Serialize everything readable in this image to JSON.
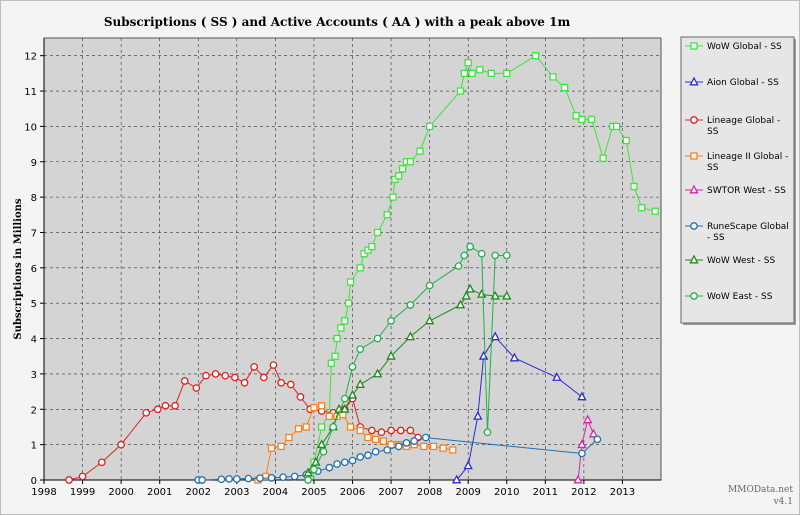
{
  "chart_data": {
    "type": "line",
    "title": "Subscriptions ( SS ) and Active Accounts ( AA ) with a peak above 1m",
    "ylabel": "Subscriptions in Millions",
    "xlabel": "",
    "xlim": [
      1998,
      2014
    ],
    "ylim": [
      0,
      12.5
    ],
    "x_ticks": [
      "1998",
      "1999",
      "2000",
      "2001",
      "2002",
      "2003",
      "2004",
      "2005",
      "2006",
      "2007",
      "2008",
      "2009",
      "2010",
      "2011",
      "2012",
      "2013"
    ],
    "y_ticks": [
      "0",
      "1",
      "2",
      "3",
      "4",
      "5",
      "6",
      "7",
      "8",
      "9",
      "10",
      "11",
      "12"
    ],
    "grid": true,
    "legend_position": "right",
    "credit": [
      "MMOData.net",
      "v4.1"
    ],
    "series": [
      {
        "name": "WoW Global - SS",
        "color": "#3ee43e",
        "marker": "square",
        "x": [
          2004.9,
          2005.0,
          2005.2,
          2005.4,
          2005.45,
          2005.55,
          2005.6,
          2005.7,
          2005.8,
          2005.9,
          2005.95,
          2006.2,
          2006.3,
          2006.4,
          2006.5,
          2006.65,
          2006.9,
          2007.05,
          2007.1,
          2007.2,
          2007.3,
          2007.4,
          2007.5,
          2007.75,
          2008.0,
          2008.8,
          2008.9,
          2009.0,
          2009.1,
          2009.3,
          2009.6,
          2010.0,
          2010.75,
          2011.2,
          2011.5,
          2011.8,
          2011.95,
          2012.2,
          2012.5,
          2012.75,
          2012.85,
          2013.1,
          2013.3,
          2013.5,
          2013.85
        ],
        "y": [
          0.2,
          0.5,
          1.5,
          1.9,
          3.3,
          3.5,
          4.0,
          4.3,
          4.5,
          5.0,
          5.6,
          6.0,
          6.4,
          6.5,
          6.6,
          7.0,
          7.5,
          8.0,
          8.5,
          8.6,
          8.8,
          9.0,
          9.0,
          9.3,
          10.0,
          11.0,
          11.5,
          11.8,
          11.5,
          11.6,
          11.5,
          11.5,
          12.0,
          11.4,
          11.1,
          10.3,
          10.2,
          10.2,
          9.1,
          10.0,
          10.0,
          9.6,
          8.3,
          7.7,
          7.6
        ]
      },
      {
        "name": "Aion Global - SS",
        "color": "#2b2bd6",
        "marker": "triangle",
        "x": [
          2008.7,
          2009.0,
          2009.25,
          2009.4,
          2009.7,
          2010.2,
          2011.3,
          2011.95
        ],
        "y": [
          0,
          0.4,
          1.8,
          3.5,
          4.05,
          3.45,
          2.9,
          2.35
        ]
      },
      {
        "name": "Lineage Global - SS",
        "color": "#e02020",
        "marker": "circle",
        "x": [
          1998.65,
          1999.0,
          1999.5,
          2000.0,
          2000.65,
          2000.95,
          2001.15,
          2001.4,
          2001.65,
          2001.95,
          2002.2,
          2002.45,
          2002.7,
          2002.95,
          2003.2,
          2003.45,
          2003.7,
          2003.95,
          2004.15,
          2004.4,
          2004.65,
          2004.9,
          2005.2,
          2005.5,
          2005.8,
          2006.0,
          2006.2,
          2006.5,
          2006.75,
          2007.0,
          2007.25,
          2007.5,
          2007.7
        ],
        "y": [
          0,
          0.1,
          0.5,
          1.0,
          1.9,
          2.0,
          2.1,
          2.1,
          2.8,
          2.6,
          2.95,
          3.0,
          2.95,
          2.9,
          2.75,
          3.2,
          2.9,
          3.25,
          2.75,
          2.7,
          2.35,
          2.0,
          1.95,
          1.9,
          2.0,
          2.3,
          1.5,
          1.4,
          1.35,
          1.4,
          1.4,
          1.4,
          1.2
        ]
      },
      {
        "name": "Lineage II Global - SS",
        "color": "#ff7f1a",
        "marker": "square",
        "x": [
          2003.55,
          2003.75,
          2003.9,
          2004.15,
          2004.35,
          2004.6,
          2004.8,
          2005.0,
          2005.2,
          2005.4,
          2005.6,
          2005.75,
          2005.95,
          2006.2,
          2006.4,
          2006.6,
          2006.8,
          2007.0,
          2007.2,
          2007.4,
          2007.6,
          2007.85,
          2008.1,
          2008.35,
          2008.6
        ],
        "y": [
          0,
          0.1,
          0.9,
          0.95,
          1.2,
          1.45,
          1.5,
          2.05,
          2.1,
          1.8,
          1.8,
          1.85,
          1.5,
          1.4,
          1.2,
          1.15,
          1.1,
          1.0,
          1.0,
          0.95,
          1.0,
          0.95,
          0.95,
          0.9,
          0.85
        ]
      },
      {
        "name": "SWTOR West - SS",
        "color": "#d626a8",
        "marker": "triangle",
        "x": [
          2011.85,
          2011.95,
          2012.1,
          2012.25
        ],
        "y": [
          0,
          1.0,
          1.7,
          1.3
        ]
      },
      {
        "name": "RuneScape Global - SS",
        "color": "#1f6fb4",
        "marker": "circle",
        "x": [
          2002.0,
          2002.1,
          2002.6,
          2002.8,
          2003.0,
          2003.3,
          2003.6,
          2003.9,
          2004.2,
          2004.5,
          2004.8,
          2005.1,
          2005.4,
          2005.6,
          2005.8,
          2006.0,
          2006.2,
          2006.4,
          2006.6,
          2006.9,
          2007.2,
          2007.4,
          2007.6,
          2007.9,
          2011.95,
          2012.35
        ],
        "y": [
          0,
          0,
          0.02,
          0.03,
          0.03,
          0.04,
          0.05,
          0.06,
          0.08,
          0.1,
          0.15,
          0.25,
          0.35,
          0.45,
          0.5,
          0.55,
          0.65,
          0.7,
          0.8,
          0.85,
          0.95,
          1.05,
          1.1,
          1.2,
          0.75,
          1.15
        ]
      },
      {
        "name": "WoW West - SS",
        "color": "#1a8a1a",
        "marker": "triangle",
        "x": [
          2004.85,
          2004.95,
          2005.05,
          2005.2,
          2005.5,
          2005.65,
          2005.8,
          2006.0,
          2006.2,
          2006.65,
          2007.0,
          2007.5,
          2008.0,
          2008.8,
          2008.95,
          2009.05,
          2009.35,
          2009.7,
          2010.0
        ],
        "y": [
          0.2,
          0.3,
          0.5,
          1.0,
          1.5,
          2.0,
          2.0,
          2.4,
          2.7,
          3.0,
          3.5,
          4.05,
          4.5,
          4.95,
          5.2,
          5.4,
          5.25,
          5.2,
          5.2
        ]
      },
      {
        "name": "WoW East - SS",
        "color": "#22b04a",
        "marker": "circle",
        "x": [
          2004.85,
          2005.0,
          2005.25,
          2005.5,
          2005.8,
          2006.0,
          2006.2,
          2006.65,
          2007.0,
          2007.5,
          2008.0,
          2008.75,
          2008.9,
          2009.05,
          2009.35,
          2009.5,
          2009.7,
          2010.0
        ],
        "y": [
          0,
          0.3,
          0.8,
          1.5,
          2.3,
          3.2,
          3.7,
          4.0,
          4.5,
          4.95,
          5.5,
          6.05,
          6.35,
          6.6,
          6.4,
          1.35,
          6.35,
          6.35
        ]
      }
    ]
  }
}
